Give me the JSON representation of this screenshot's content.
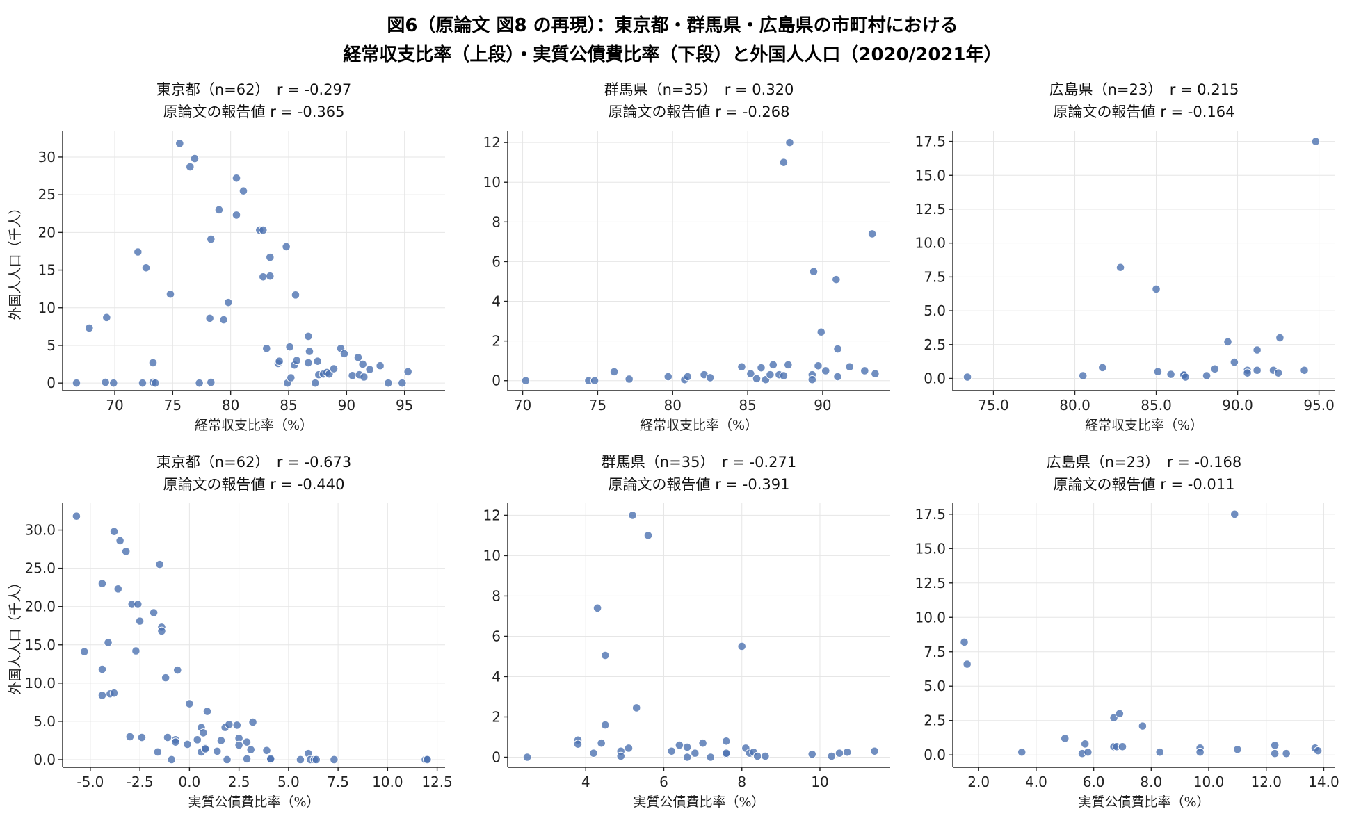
{
  "figure": {
    "title_line1": "図6（原論文 図8 の再現）：東京都・群馬県・広島県の市町村における",
    "title_line2": "経常収支比率（上段）・実質公債費比率（下段）と外国人人口（2020/2021年）"
  },
  "colors": {
    "point": "#4c72b0",
    "grid": "#e6e6e6",
    "axis": "#222222"
  },
  "chart_data": [
    {
      "type": "scatter",
      "title": "東京都（n=62）　r = -0.297",
      "subtitle": "原論文の報告値 r = -0.365",
      "xlabel": "経常収支比率（%）",
      "ylabel": "外国人人口（千人）",
      "xlim": [
        65.5,
        98.5
      ],
      "ylim": [
        -1,
        33.5
      ],
      "xticks": [
        70,
        75,
        80,
        85,
        90,
        95
      ],
      "yticks": [
        0,
        5,
        10,
        15,
        20,
        25,
        30
      ],
      "tick_decimals": 0,
      "points": [
        [
          66.7,
          0
        ],
        [
          67.8,
          7.3
        ],
        [
          69.2,
          0.1
        ],
        [
          69.3,
          8.7
        ],
        [
          69.9,
          0
        ],
        [
          72,
          17.4
        ],
        [
          72.4,
          0
        ],
        [
          72.7,
          15.3
        ],
        [
          73.3,
          2.7
        ],
        [
          73.3,
          0.1
        ],
        [
          73.5,
          0
        ],
        [
          74.8,
          11.8
        ],
        [
          75.6,
          31.8
        ],
        [
          76.5,
          28.7
        ],
        [
          76.9,
          29.8
        ],
        [
          77.3,
          0
        ],
        [
          78.2,
          8.6
        ],
        [
          78.3,
          19.1
        ],
        [
          78.3,
          0.1
        ],
        [
          79,
          23
        ],
        [
          79.4,
          8.4
        ],
        [
          79.8,
          10.7
        ],
        [
          80.5,
          27.2
        ],
        [
          80.5,
          22.3
        ],
        [
          81.1,
          25.5
        ],
        [
          82.5,
          20.3
        ],
        [
          82.8,
          20.3
        ],
        [
          82.8,
          14.1
        ],
        [
          83.1,
          4.6
        ],
        [
          83.4,
          16.7
        ],
        [
          83.4,
          14.2
        ],
        [
          84.1,
          2.6
        ],
        [
          84.2,
          2.9
        ],
        [
          84.8,
          18.1
        ],
        [
          84.9,
          0
        ],
        [
          85.1,
          4.8
        ],
        [
          85.2,
          0.7
        ],
        [
          85.5,
          2.4
        ],
        [
          85.6,
          11.7
        ],
        [
          85.7,
          3
        ],
        [
          86.7,
          6.2
        ],
        [
          86.7,
          2.7
        ],
        [
          86.8,
          4.2
        ],
        [
          87.3,
          0
        ],
        [
          87.5,
          2.9
        ],
        [
          87.6,
          1.1
        ],
        [
          88,
          1.2
        ],
        [
          88.3,
          1.4
        ],
        [
          88.5,
          1.2
        ],
        [
          88.9,
          1.9
        ],
        [
          89.5,
          4.6
        ],
        [
          89.8,
          3.9
        ],
        [
          90.5,
          1
        ],
        [
          91,
          3.4
        ],
        [
          91.1,
          1.1
        ],
        [
          91.4,
          2.5
        ],
        [
          91.5,
          0.8
        ],
        [
          92,
          1.8
        ],
        [
          92.9,
          2.3
        ],
        [
          93.6,
          0
        ],
        [
          94.8,
          0
        ],
        [
          95.3,
          1.5
        ]
      ]
    },
    {
      "type": "scatter",
      "title": "群馬県（n=35）　r = 0.320",
      "subtitle": "原論文の報告値 r = -0.268",
      "xlabel": "経常収支比率（%）",
      "ylabel": "",
      "xlim": [
        69,
        94.5
      ],
      "ylim": [
        -0.5,
        12.6
      ],
      "xticks": [
        70,
        75,
        80,
        85,
        90
      ],
      "yticks": [
        0,
        2,
        4,
        6,
        8,
        10,
        12
      ],
      "tick_decimals": 0,
      "points": [
        [
          70.2,
          0
        ],
        [
          74.4,
          0
        ],
        [
          74.8,
          0
        ],
        [
          76.1,
          0.45
        ],
        [
          77.1,
          0.08
        ],
        [
          79.7,
          0.2
        ],
        [
          80.8,
          0.05
        ],
        [
          81,
          0.2
        ],
        [
          82.1,
          0.3
        ],
        [
          82.5,
          0.15
        ],
        [
          84.6,
          0.7
        ],
        [
          85.2,
          0.35
        ],
        [
          85.6,
          0.1
        ],
        [
          85.9,
          0.65
        ],
        [
          86.2,
          0.05
        ],
        [
          86.5,
          0.3
        ],
        [
          86.7,
          0.8
        ],
        [
          87.1,
          0.3
        ],
        [
          87.4,
          11
        ],
        [
          87.4,
          0.25
        ],
        [
          87.7,
          0.8
        ],
        [
          87.8,
          12
        ],
        [
          89.3,
          0.3
        ],
        [
          89.3,
          0.05
        ],
        [
          89.4,
          5.5
        ],
        [
          89.7,
          0.75
        ],
        [
          89.9,
          2.45
        ],
        [
          90.2,
          0.5
        ],
        [
          90.9,
          5.1
        ],
        [
          91,
          1.6
        ],
        [
          91,
          0.2
        ],
        [
          91.8,
          0.7
        ],
        [
          92.8,
          0.5
        ],
        [
          93.3,
          7.4
        ],
        [
          93.5,
          0.35
        ]
      ]
    },
    {
      "type": "scatter",
      "title": "広島県（n=23）　r = 0.215",
      "subtitle": "原論文の報告値 r = -0.164",
      "xlabel": "経常収支比率（%）",
      "ylabel": "",
      "xlim": [
        72.5,
        96
      ],
      "ylim": [
        -0.9,
        18.3
      ],
      "xticks": [
        75,
        80,
        85,
        90,
        95
      ],
      "yticks": [
        0,
        2.5,
        5,
        7.5,
        10,
        12.5,
        15,
        17.5
      ],
      "tick_decimals": 1,
      "points": [
        [
          73.4,
          0.1
        ],
        [
          80.5,
          0.2
        ],
        [
          81.7,
          0.8
        ],
        [
          82.8,
          8.2
        ],
        [
          85,
          6.6
        ],
        [
          85.1,
          0.5
        ],
        [
          85.9,
          0.3
        ],
        [
          86.7,
          0.3
        ],
        [
          86.7,
          0.25
        ],
        [
          86.8,
          0.1
        ],
        [
          88.1,
          0.2
        ],
        [
          88.6,
          0.7
        ],
        [
          89.4,
          2.7
        ],
        [
          89.8,
          1.2
        ],
        [
          90.6,
          0.6
        ],
        [
          90.6,
          0.4
        ],
        [
          91.2,
          0.6
        ],
        [
          91.2,
          2.1
        ],
        [
          92.2,
          0.6
        ],
        [
          92.5,
          0.4
        ],
        [
          92.6,
          3
        ],
        [
          94.1,
          0.6
        ],
        [
          94.8,
          17.5
        ]
      ]
    },
    {
      "type": "scatter",
      "title": "東京都（n=62）　r = -0.673",
      "subtitle": "原論文の報告値 r = -0.440",
      "xlabel": "実質公債費比率（%）",
      "ylabel": "外国人人口（千人）",
      "xlim": [
        -6.4,
        12.9
      ],
      "ylim": [
        -1,
        33.5
      ],
      "xticks": [
        -5,
        -2.5,
        0,
        2.5,
        5,
        7.5,
        10,
        12.5
      ],
      "yticks": [
        0,
        5,
        10,
        15,
        20,
        25,
        30
      ],
      "tick_decimals": 1,
      "points": [
        [
          -5.7,
          31.8
        ],
        [
          -5.3,
          14.1
        ],
        [
          -4.4,
          23
        ],
        [
          -4.4,
          11.8
        ],
        [
          -4.4,
          8.4
        ],
        [
          -4.1,
          15.3
        ],
        [
          -4.0,
          8.6
        ],
        [
          -3.8,
          29.8
        ],
        [
          -3.8,
          8.7
        ],
        [
          -3.6,
          22.3
        ],
        [
          -3.5,
          28.6
        ],
        [
          -3.2,
          27.2
        ],
        [
          -3.0,
          3
        ],
        [
          -2.9,
          20.3
        ],
        [
          -2.7,
          14.2
        ],
        [
          -2.6,
          20.3
        ],
        [
          -2.5,
          18.1
        ],
        [
          -2.4,
          2.9
        ],
        [
          -1.8,
          19.2
        ],
        [
          -1.6,
          1
        ],
        [
          -1.5,
          25.5
        ],
        [
          -1.4,
          17.3
        ],
        [
          -1.4,
          16.8
        ],
        [
          -1.2,
          10.7
        ],
        [
          -1.1,
          2.9
        ],
        [
          -0.9,
          0
        ],
        [
          -0.7,
          2.6
        ],
        [
          -0.7,
          2.3
        ],
        [
          -0.6,
          11.7
        ],
        [
          -0.1,
          2
        ],
        [
          0,
          7.3
        ],
        [
          0.4,
          2.6
        ],
        [
          0.6,
          1
        ],
        [
          0.6,
          4.2
        ],
        [
          0.7,
          3.5
        ],
        [
          0.8,
          1.5
        ],
        [
          0.8,
          1.4
        ],
        [
          0.9,
          6.3
        ],
        [
          1.4,
          1.1
        ],
        [
          1.6,
          2.5
        ],
        [
          1.8,
          4.2
        ],
        [
          1.9,
          0
        ],
        [
          2,
          4.6
        ],
        [
          2.4,
          4.5
        ],
        [
          2.5,
          2.8
        ],
        [
          2.5,
          1.9
        ],
        [
          2.9,
          0.1
        ],
        [
          2.9,
          2.3
        ],
        [
          3.1,
          1.3
        ],
        [
          3.2,
          4.9
        ],
        [
          3.9,
          1.2
        ],
        [
          4.1,
          0
        ],
        [
          4.1,
          0.1
        ],
        [
          5.6,
          0
        ],
        [
          6,
          0.8
        ],
        [
          6.1,
          0
        ],
        [
          6.3,
          0
        ],
        [
          6.4,
          0
        ],
        [
          7.3,
          0
        ],
        [
          11.9,
          0
        ],
        [
          12,
          0.1
        ],
        [
          12,
          0
        ]
      ]
    },
    {
      "type": "scatter",
      "title": "群馬県（n=35）　r = -0.271",
      "subtitle": "原論文の報告値 r = -0.391",
      "xlabel": "実質公債費比率（%）",
      "ylabel": "",
      "xlim": [
        2,
        11.8
      ],
      "ylim": [
        -0.5,
        12.6
      ],
      "xticks": [
        4,
        6,
        8,
        10
      ],
      "yticks": [
        0,
        2,
        4,
        6,
        8,
        10,
        12
      ],
      "tick_decimals": 0,
      "points": [
        [
          2.5,
          0
        ],
        [
          3.8,
          0.85
        ],
        [
          3.8,
          0.65
        ],
        [
          4.2,
          0.2
        ],
        [
          4.3,
          7.4
        ],
        [
          4.4,
          0.7
        ],
        [
          4.5,
          5.05
        ],
        [
          4.5,
          1.6
        ],
        [
          4.9,
          0.3
        ],
        [
          4.9,
          0.05
        ],
        [
          5.1,
          0.45
        ],
        [
          5.2,
          12
        ],
        [
          5.3,
          2.45
        ],
        [
          5.6,
          11
        ],
        [
          6.2,
          0.3
        ],
        [
          6.4,
          0.6
        ],
        [
          6.6,
          0.5
        ],
        [
          6.6,
          0
        ],
        [
          6.8,
          0.2
        ],
        [
          7,
          0.7
        ],
        [
          7.2,
          0
        ],
        [
          7.6,
          0.8
        ],
        [
          7.6,
          0.15
        ],
        [
          7.6,
          0.2
        ],
        [
          8,
          5.5
        ],
        [
          8.1,
          0.45
        ],
        [
          8.2,
          0.2
        ],
        [
          8.3,
          0.25
        ],
        [
          8.4,
          0.05
        ],
        [
          8.6,
          0.05
        ],
        [
          9.8,
          0.15
        ],
        [
          10.3,
          0.05
        ],
        [
          10.5,
          0.2
        ],
        [
          10.7,
          0.25
        ],
        [
          11.4,
          0.3
        ]
      ]
    },
    {
      "type": "scatter",
      "title": "広島県（n=23）　r = -0.168",
      "subtitle": "原論文の報告値 r = -0.011",
      "xlabel": "実質公債費比率（%）",
      "ylabel": "",
      "xlim": [
        1.1,
        14.4
      ],
      "ylim": [
        -0.9,
        18.3
      ],
      "xticks": [
        2,
        4,
        6,
        8,
        10,
        12,
        14
      ],
      "yticks": [
        0,
        2.5,
        5,
        7.5,
        10,
        12.5,
        15,
        17.5
      ],
      "tick_decimals": 1,
      "points": [
        [
          1.5,
          8.2
        ],
        [
          1.6,
          6.6
        ],
        [
          3.5,
          0.2
        ],
        [
          5,
          1.2
        ],
        [
          5.6,
          0.1
        ],
        [
          5.7,
          0.8
        ],
        [
          5.8,
          0.2
        ],
        [
          6.7,
          0.6
        ],
        [
          6.7,
          2.7
        ],
        [
          6.8,
          0.6
        ],
        [
          6.9,
          3
        ],
        [
          7,
          0.6
        ],
        [
          7.7,
          2.1
        ],
        [
          8.3,
          0.2
        ],
        [
          9.7,
          0.5
        ],
        [
          9.7,
          0.2
        ],
        [
          10.9,
          17.5
        ],
        [
          11,
          0.4
        ],
        [
          12.3,
          0.7
        ],
        [
          12.3,
          0.1
        ],
        [
          12.7,
          0.1
        ],
        [
          13.7,
          0.5
        ],
        [
          13.8,
          0.3
        ]
      ]
    }
  ]
}
